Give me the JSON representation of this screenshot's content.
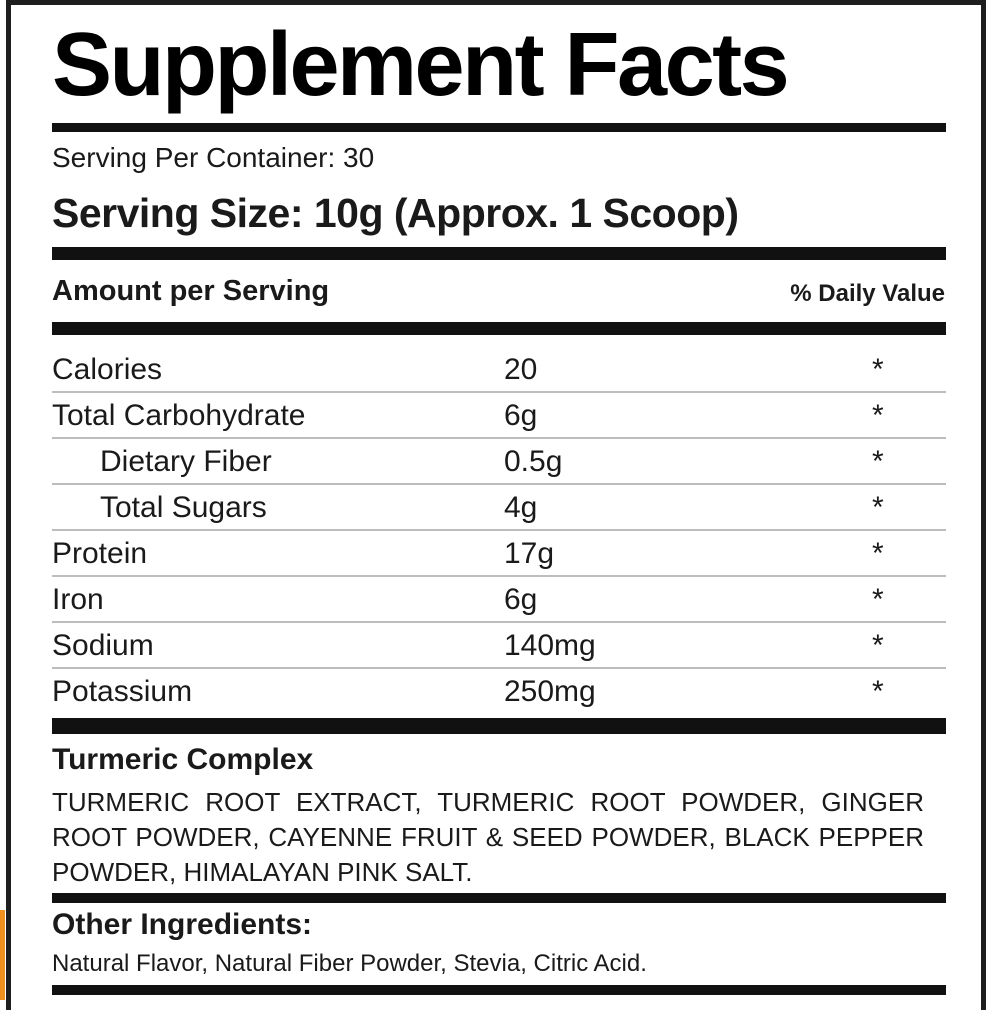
{
  "title": "Supplement Facts",
  "servings_per_container": "Serving Per Container: 30",
  "serving_size": "Serving Size: 10g (Approx. 1 Scoop)",
  "amount_per_serving": "Amount per Serving",
  "daily_value_header": "% Daily Value",
  "nutrients": [
    {
      "name": "Calories",
      "amount": "20",
      "dv": "*",
      "indent": false
    },
    {
      "name": "Total Carbohydrate",
      "amount": "6g",
      "dv": "*",
      "indent": false
    },
    {
      "name": "Dietary Fiber",
      "amount": "0.5g",
      "dv": "*",
      "indent": true
    },
    {
      "name": "Total Sugars",
      "amount": "4g",
      "dv": "*",
      "indent": true
    },
    {
      "name": "Protein",
      "amount": "17g",
      "dv": "*",
      "indent": false
    },
    {
      "name": "Iron",
      "amount": "6g",
      "dv": "*",
      "indent": false
    },
    {
      "name": "Sodium",
      "amount": "140mg",
      "dv": "*",
      "indent": false
    },
    {
      "name": "Potassium",
      "amount": "250mg",
      "dv": "*",
      "indent": false
    }
  ],
  "blend": {
    "title": "Turmeric Complex",
    "ingredients": "TURMERIC ROOT EXTRACT, TURMERIC ROOT POWDER, GINGER ROOT POWDER, CAYENNE FRUIT & SEED POWDER, BLACK PEPPER POWDER, HIMALAYAN PINK SALT."
  },
  "other": {
    "title": "Other Ingredients:",
    "text": "Natural Flavor, Natural Fiber Powder, Stevia, Citric Acid."
  },
  "colors": {
    "ink": "#111111",
    "divider": "#bdbdbd",
    "accent": "#f0901e"
  }
}
